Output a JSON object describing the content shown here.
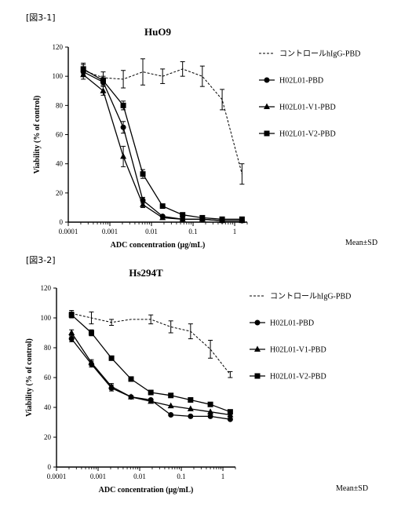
{
  "figure_labels": [
    "[図3-1]",
    "[図3-2]"
  ],
  "chart_data": [
    {
      "type": "line",
      "title": "HuO9",
      "xlabel": "ADC concentration (μg/mL)",
      "ylabel": "Viability (% of control)",
      "x_scale": "log",
      "xlim": [
        0.0001,
        2
      ],
      "ylim": [
        0,
        120
      ],
      "x_ticks": [
        0.0001,
        0.001,
        0.01,
        0.1,
        1
      ],
      "x_tick_labels": [
        "0.0001",
        "0.001",
        "0.01",
        "0.1",
        "1"
      ],
      "y_ticks": [
        0,
        20,
        40,
        60,
        80,
        100,
        120
      ],
      "y_tick_labels": [
        "0",
        "20",
        "40",
        "60",
        "80",
        "100",
        "120"
      ],
      "legend_position": "right",
      "note": "Mean±SD",
      "series": [
        {
          "name": "コントロールhIgG-PBD",
          "marker": "none",
          "dash": true,
          "x": [
            0.00023,
            0.00069,
            0.0021,
            0.0062,
            0.0185,
            0.056,
            0.167,
            0.5,
            1.5
          ],
          "y": [
            104,
            99,
            98,
            103,
            100,
            105,
            100,
            84,
            33
          ],
          "err": [
            4,
            4,
            6,
            9,
            5,
            5,
            7,
            7,
            7
          ]
        },
        {
          "name": "H02L01-PBD",
          "marker": "circle",
          "dash": false,
          "x": [
            0.00023,
            0.00069,
            0.0021,
            0.0062,
            0.0185,
            0.056,
            0.167,
            0.5,
            1.5
          ],
          "y": [
            103,
            96,
            65,
            15,
            4,
            2,
            2,
            1,
            1
          ],
          "err": [
            3,
            3,
            4,
            2,
            1,
            1,
            1,
            1,
            1
          ]
        },
        {
          "name": "H02L01-V1-PBD",
          "marker": "triangle",
          "dash": false,
          "x": [
            0.00023,
            0.00069,
            0.0021,
            0.0062,
            0.0185,
            0.056,
            0.167,
            0.5,
            1.5
          ],
          "y": [
            101,
            90,
            45,
            12,
            3,
            2,
            2,
            1,
            1
          ],
          "err": [
            3,
            3,
            7,
            2,
            1,
            1,
            1,
            1,
            1
          ]
        },
        {
          "name": "H02L01-V2-PBD",
          "marker": "square",
          "dash": false,
          "x": [
            0.00023,
            0.00069,
            0.0021,
            0.0062,
            0.0185,
            0.056,
            0.167,
            0.5,
            1.5
          ],
          "y": [
            105,
            97,
            80,
            33,
            11,
            5,
            3,
            2,
            2
          ],
          "err": [
            4,
            3,
            3,
            3,
            1,
            1,
            1,
            1,
            1
          ]
        }
      ]
    },
    {
      "type": "line",
      "title": "Hs294T",
      "xlabel": "ADC concentration (μg/mL)",
      "ylabel": "Viability (% of control)",
      "x_scale": "log",
      "xlim": [
        0.0001,
        2
      ],
      "ylim": [
        0,
        120
      ],
      "x_ticks": [
        0.0001,
        0.001,
        0.01,
        0.1,
        1
      ],
      "x_tick_labels": [
        "0.0001",
        "0.001",
        "0.01",
        "0.1",
        "1"
      ],
      "y_ticks": [
        0,
        20,
        40,
        60,
        80,
        100,
        120
      ],
      "y_tick_labels": [
        "0",
        "20",
        "40",
        "60",
        "80",
        "100",
        "120"
      ],
      "legend_position": "right",
      "note": "Mean±SD",
      "series": [
        {
          "name": "コントロールhIgG-PBD",
          "marker": "none",
          "dash": true,
          "x": [
            0.00023,
            0.00069,
            0.0021,
            0.0062,
            0.0185,
            0.056,
            0.167,
            0.5,
            1.5
          ],
          "y": [
            103,
            100,
            97,
            99,
            99,
            94,
            91,
            79,
            62
          ],
          "err": [
            2,
            4,
            2,
            1,
            3,
            4,
            5,
            6,
            2
          ]
        },
        {
          "name": "H02L01-PBD",
          "marker": "circle",
          "dash": false,
          "x": [
            0.00023,
            0.00069,
            0.0021,
            0.0062,
            0.0185,
            0.056,
            0.167,
            0.5,
            1.5
          ],
          "y": [
            86,
            69,
            53,
            47,
            45,
            35,
            34,
            34,
            32
          ],
          "err": [
            2,
            2,
            2,
            1,
            1,
            1,
            1,
            1,
            1
          ]
        },
        {
          "name": "H02L01-V1-PBD",
          "marker": "triangle",
          "dash": false,
          "x": [
            0.00023,
            0.00069,
            0.0021,
            0.0062,
            0.0185,
            0.056,
            0.167,
            0.5,
            1.5
          ],
          "y": [
            90,
            70,
            54,
            47,
            44,
            41,
            39,
            37,
            35
          ],
          "err": [
            2,
            2,
            2,
            1,
            1,
            1,
            1,
            1,
            1
          ]
        },
        {
          "name": "H02L01-V2-PBD",
          "marker": "square",
          "dash": false,
          "x": [
            0.00023,
            0.00069,
            0.0021,
            0.0062,
            0.0185,
            0.056,
            0.167,
            0.5,
            1.5
          ],
          "y": [
            102,
            90,
            73,
            59,
            50,
            48,
            45,
            42,
            37
          ],
          "err": [
            2,
            2,
            1,
            1,
            1,
            1,
            1,
            1,
            1
          ]
        }
      ]
    }
  ]
}
